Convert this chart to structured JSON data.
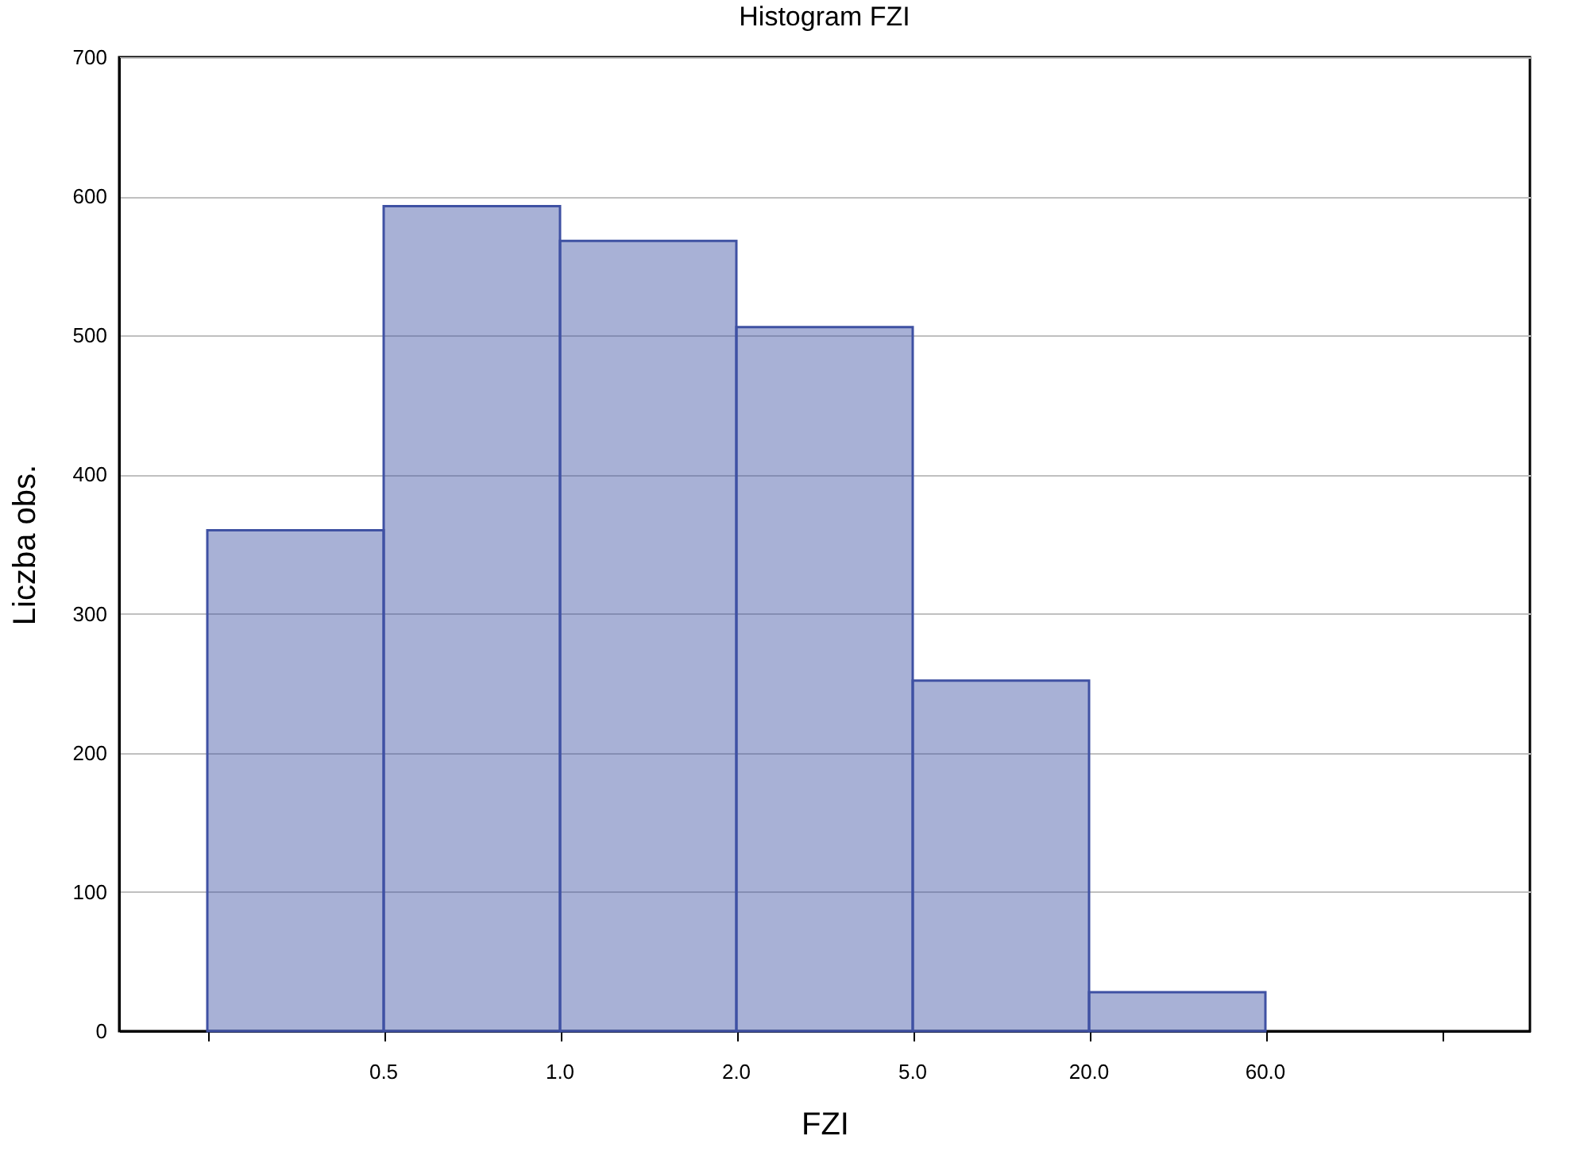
{
  "chart_data": {
    "type": "bar",
    "title": "Histogram FZI",
    "xlabel": "FZI",
    "ylabel": "Liczba obs.",
    "categories": [
      null,
      null,
      null,
      null,
      null,
      null
    ],
    "values": [
      360,
      593,
      568,
      506,
      252,
      28
    ],
    "color": "#3f51a3",
    "ylim": [
      0,
      700
    ],
    "yticks": [
      0,
      100,
      200,
      300,
      400,
      500,
      600,
      700
    ],
    "annotations": [
      "0.5",
      "1.0",
      "2.0",
      "5.0",
      "20.0",
      "60.0"
    ],
    "grid": "y"
  }
}
